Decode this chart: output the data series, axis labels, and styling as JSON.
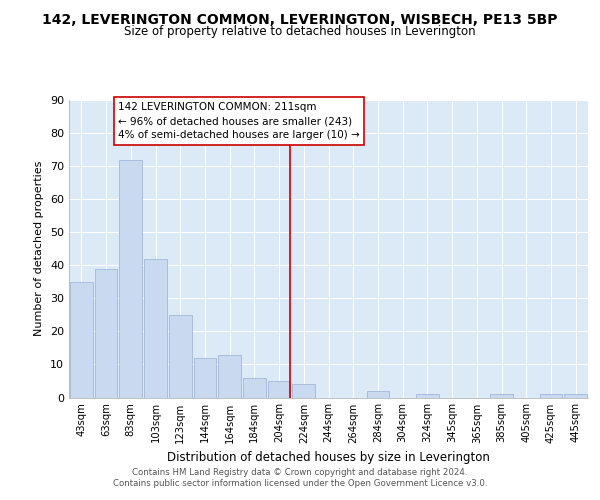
{
  "title": "142, LEVERINGTON COMMON, LEVERINGTON, WISBECH, PE13 5BP",
  "subtitle": "Size of property relative to detached houses in Leverington",
  "xlabel": "Distribution of detached houses by size in Leverington",
  "ylabel": "Number of detached properties",
  "bar_labels": [
    "43sqm",
    "63sqm",
    "83sqm",
    "103sqm",
    "123sqm",
    "144sqm",
    "164sqm",
    "184sqm",
    "204sqm",
    "224sqm",
    "244sqm",
    "264sqm",
    "284sqm",
    "304sqm",
    "324sqm",
    "345sqm",
    "365sqm",
    "385sqm",
    "405sqm",
    "425sqm",
    "445sqm"
  ],
  "bar_values": [
    35,
    39,
    72,
    42,
    25,
    12,
    13,
    6,
    5,
    4,
    0,
    0,
    2,
    0,
    1,
    0,
    0,
    1,
    0,
    1,
    1
  ],
  "bar_color": "#c8d9f0",
  "bar_edge_color": "#a0b8d8",
  "reference_line_color": "#cc0000",
  "annotation_text_line1": "142 LEVERINGTON COMMON: 211sqm",
  "annotation_text_line2": "← 96% of detached houses are smaller (243)",
  "annotation_text_line3": "4% of semi-detached houses are larger (10) →",
  "ylim": [
    0,
    90
  ],
  "yticks": [
    0,
    10,
    20,
    30,
    40,
    50,
    60,
    70,
    80,
    90
  ],
  "footer_line1": "Contains HM Land Registry data © Crown copyright and database right 2024.",
  "footer_line2": "Contains public sector information licensed under the Open Government Licence v3.0.",
  "background_color": "#dce9f7",
  "fig_background": "#ffffff"
}
